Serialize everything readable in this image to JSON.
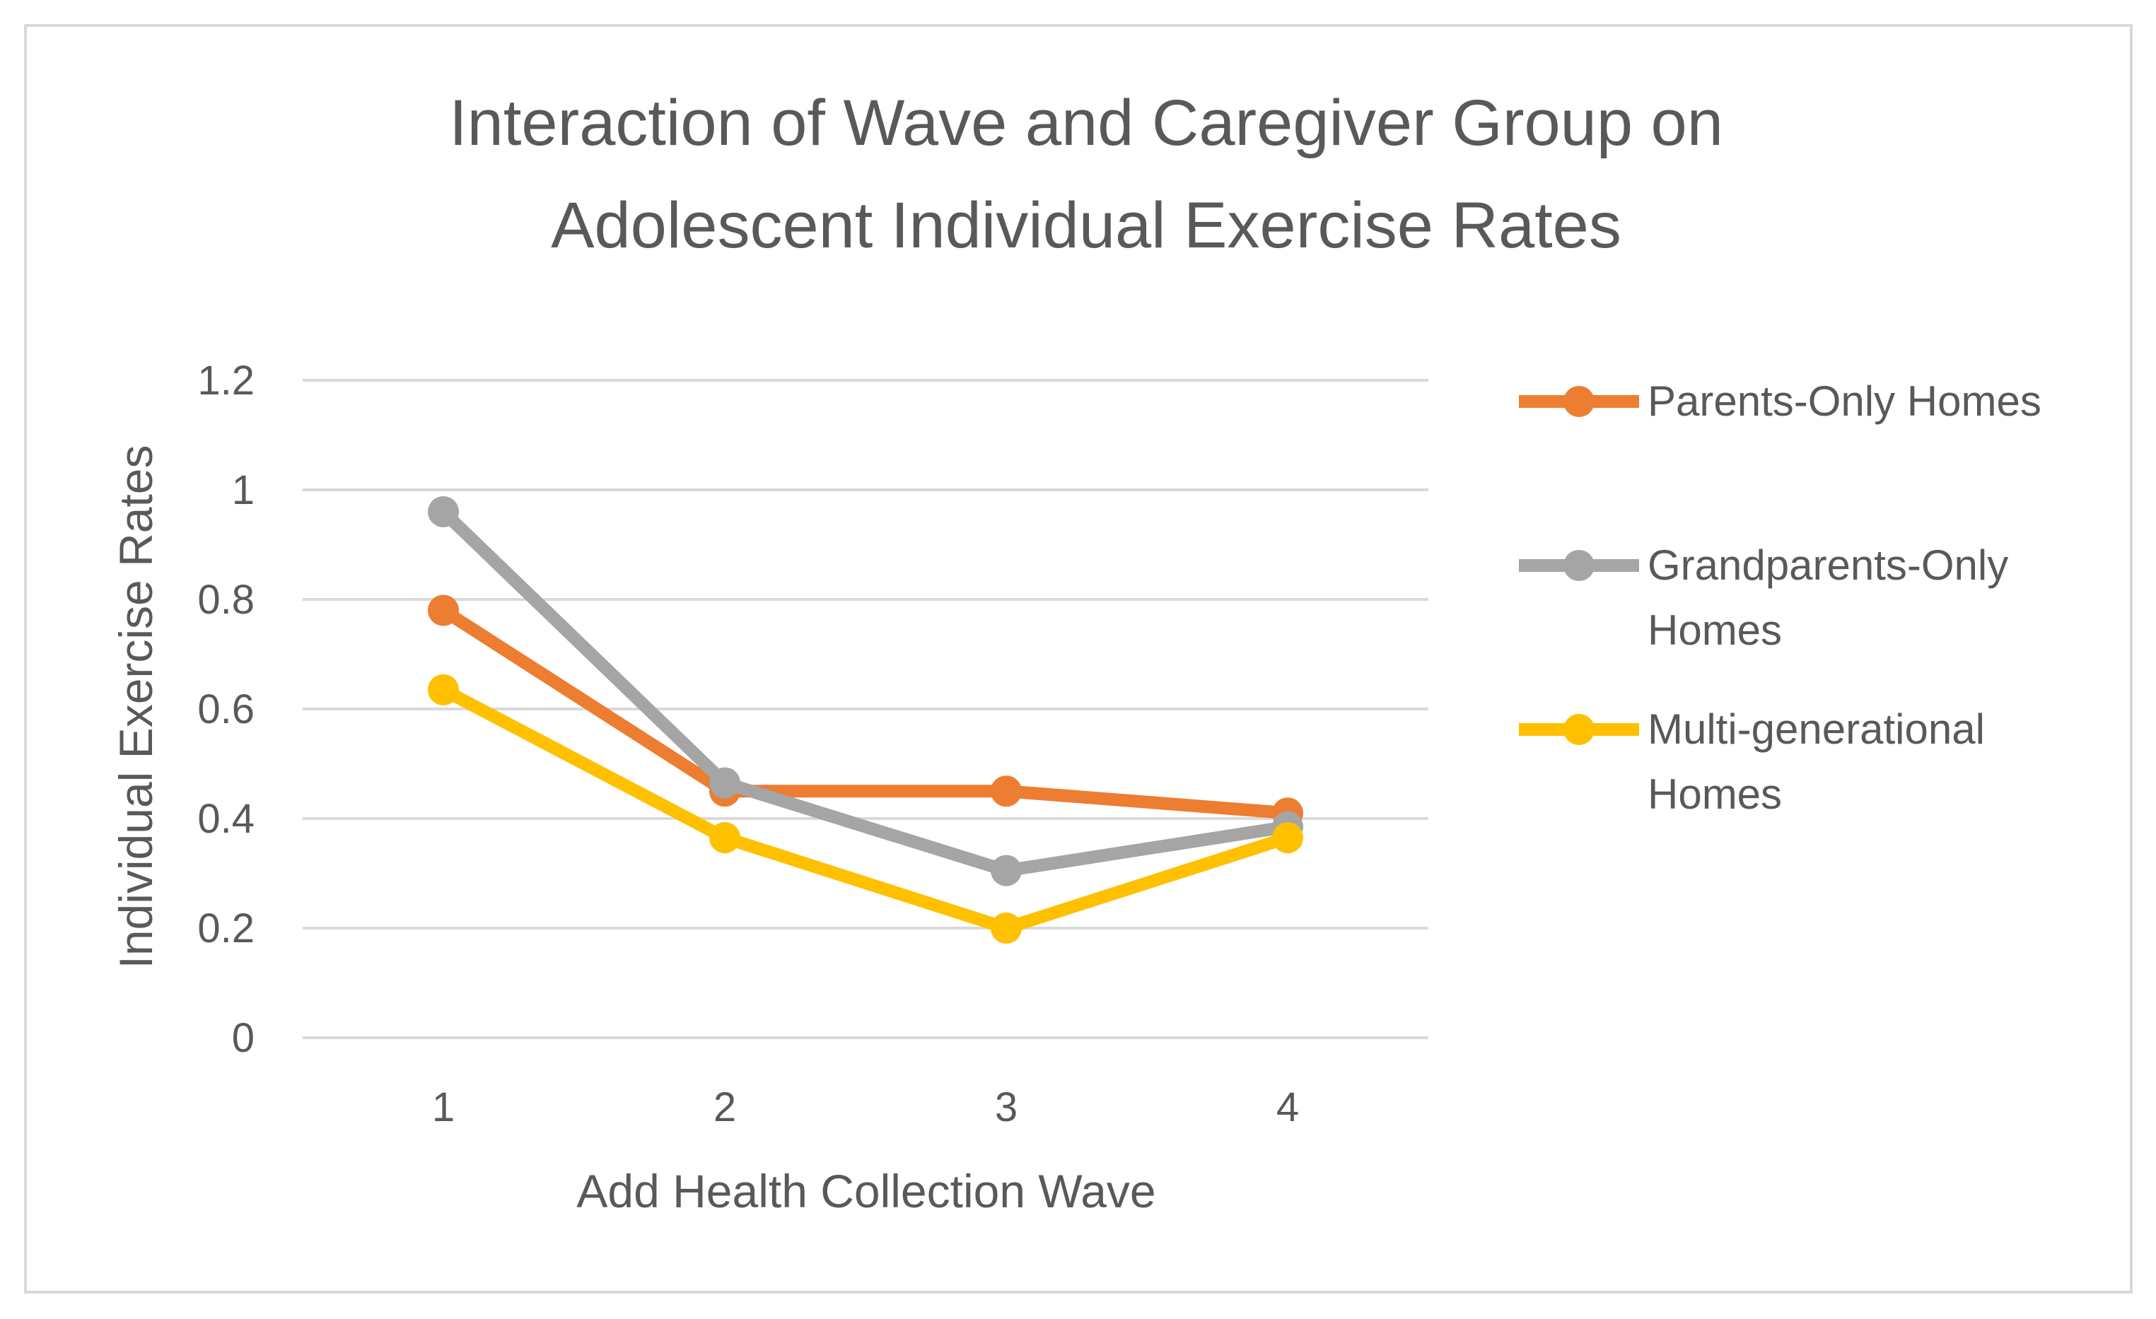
{
  "chart_data": {
    "type": "line",
    "title_lines": [
      "Interaction of Wave and Caregiver Group on",
      "Adolescent Individual Exercise Rates"
    ],
    "xlabel": "Add Health Collection Wave",
    "ylabel": "Individual Exercise Rates",
    "categories": [
      "1",
      "2",
      "3",
      "4"
    ],
    "ylim": [
      0,
      1.2
    ],
    "yticks": [
      "0",
      "0.2",
      "0.4",
      "0.6",
      "0.8",
      "1",
      "1.2"
    ],
    "grid": true,
    "legend_position": "right",
    "series": [
      {
        "name": "Parents-Only Homes",
        "legend_lines": [
          "Parents-Only Homes"
        ],
        "color": "#ed7d31",
        "values": [
          0.78,
          0.45,
          0.45,
          0.41
        ]
      },
      {
        "name": "Grandparents-Only Homes",
        "legend_lines": [
          "Grandparents-Only",
          "Homes"
        ],
        "color": "#a5a5a5",
        "values": [
          0.96,
          0.465,
          0.305,
          0.385
        ]
      },
      {
        "name": "Multi-generational Homes",
        "legend_lines": [
          "Multi-generational",
          "Homes"
        ],
        "color": "#ffc000",
        "values": [
          0.635,
          0.365,
          0.2,
          0.365
        ]
      }
    ]
  }
}
